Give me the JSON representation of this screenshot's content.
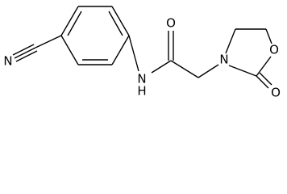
{
  "atoms": [
    {
      "label": "N"
    },
    {
      "label": "N",
      "hydrogen": "H"
    },
    {
      "label": "O"
    },
    {
      "label": "N"
    },
    {
      "label": "O"
    },
    {
      "label": "O"
    }
  ]
}
